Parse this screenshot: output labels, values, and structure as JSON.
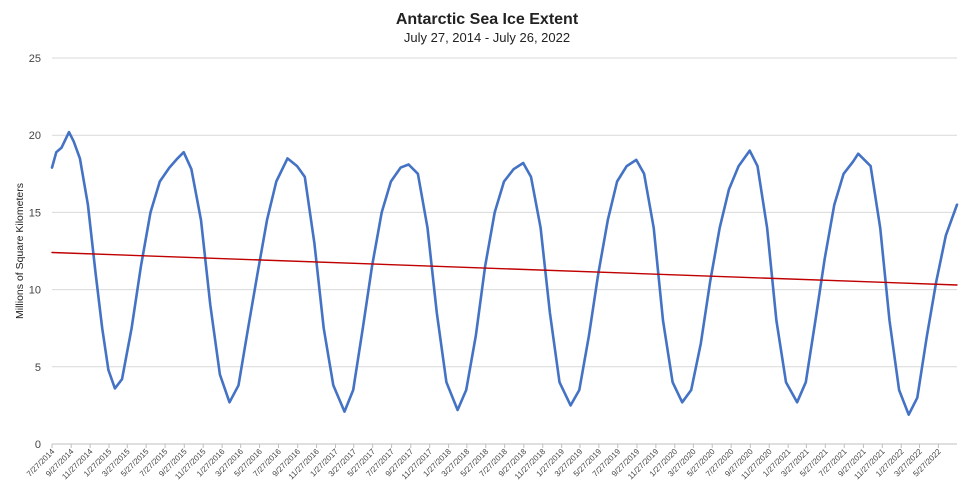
{
  "chart_data": {
    "type": "line",
    "title": "Antarctic Sea Ice Extent",
    "subtitle": "July 27, 2014 - July 26, 2022",
    "xlabel": "",
    "ylabel": "Millions of Square Kilometers",
    "ylim": [
      0,
      25
    ],
    "yticks": [
      0,
      5,
      10,
      15,
      20,
      25
    ],
    "grid": "horizontal",
    "x_range": [
      "2014-07-27",
      "2022-07-26"
    ],
    "x_tick_labels": [
      "7/27/2014",
      "9/27/2014",
      "11/27/2014",
      "1/27/2015",
      "3/27/2015",
      "5/27/2015",
      "7/27/2015",
      "9/27/2015",
      "11/27/2015",
      "1/27/2016",
      "3/27/2016",
      "5/27/2016",
      "7/27/2016",
      "9/27/2016",
      "11/27/2016",
      "1/27/2017",
      "3/27/2017",
      "5/27/2017",
      "7/27/2017",
      "9/27/2017",
      "11/27/2017",
      "1/27/2018",
      "3/27/2018",
      "5/27/2018",
      "7/27/2018",
      "9/27/2018",
      "11/27/2018",
      "1/27/2019",
      "3/27/2019",
      "5/27/2019",
      "7/27/2019",
      "9/27/2019",
      "11/27/2019",
      "1/27/2020",
      "3/27/2020",
      "5/27/2020",
      "7/27/2020",
      "9/27/2020",
      "11/27/2020",
      "1/27/2021",
      "3/27/2021",
      "5/27/2021",
      "7/27/2021",
      "9/27/2021",
      "11/27/2021",
      "1/27/2022",
      "3/27/2022",
      "5/27/2022"
    ],
    "series": [
      {
        "role": "daily extent",
        "color": "#4472c4",
        "points": [
          {
            "x": "2014-07-27",
            "y": 17.9
          },
          {
            "x": "2014-08-10",
            "y": 18.9
          },
          {
            "x": "2014-08-27",
            "y": 19.2
          },
          {
            "x": "2014-09-20",
            "y": 20.2
          },
          {
            "x": "2014-10-05",
            "y": 19.6
          },
          {
            "x": "2014-10-25",
            "y": 18.5
          },
          {
            "x": "2014-11-20",
            "y": 15.5
          },
          {
            "x": "2014-12-15",
            "y": 11.0
          },
          {
            "x": "2015-01-05",
            "y": 7.5
          },
          {
            "x": "2015-01-25",
            "y": 4.8
          },
          {
            "x": "2015-02-15",
            "y": 3.6
          },
          {
            "x": "2015-03-10",
            "y": 4.2
          },
          {
            "x": "2015-04-10",
            "y": 7.5
          },
          {
            "x": "2015-05-10",
            "y": 11.5
          },
          {
            "x": "2015-06-10",
            "y": 15.0
          },
          {
            "x": "2015-07-10",
            "y": 17.0
          },
          {
            "x": "2015-08-10",
            "y": 17.9
          },
          {
            "x": "2015-09-05",
            "y": 18.5
          },
          {
            "x": "2015-09-25",
            "y": 18.9
          },
          {
            "x": "2015-10-20",
            "y": 17.8
          },
          {
            "x": "2015-11-20",
            "y": 14.5
          },
          {
            "x": "2015-12-20",
            "y": 9.0
          },
          {
            "x": "2016-01-20",
            "y": 4.5
          },
          {
            "x": "2016-02-20",
            "y": 2.7
          },
          {
            "x": "2016-03-20",
            "y": 3.8
          },
          {
            "x": "2016-04-20",
            "y": 7.5
          },
          {
            "x": "2016-05-20",
            "y": 11.0
          },
          {
            "x": "2016-06-20",
            "y": 14.5
          },
          {
            "x": "2016-07-20",
            "y": 17.0
          },
          {
            "x": "2016-08-25",
            "y": 18.5
          },
          {
            "x": "2016-09-25",
            "y": 18.0
          },
          {
            "x": "2016-10-20",
            "y": 17.3
          },
          {
            "x": "2016-11-20",
            "y": 13.0
          },
          {
            "x": "2016-12-20",
            "y": 7.5
          },
          {
            "x": "2017-01-20",
            "y": 3.8
          },
          {
            "x": "2017-02-25",
            "y": 2.1
          },
          {
            "x": "2017-03-25",
            "y": 3.5
          },
          {
            "x": "2017-04-25",
            "y": 7.5
          },
          {
            "x": "2017-05-25",
            "y": 11.5
          },
          {
            "x": "2017-06-25",
            "y": 15.0
          },
          {
            "x": "2017-07-25",
            "y": 17.0
          },
          {
            "x": "2017-08-25",
            "y": 17.9
          },
          {
            "x": "2017-09-20",
            "y": 18.1
          },
          {
            "x": "2017-10-20",
            "y": 17.5
          },
          {
            "x": "2017-11-20",
            "y": 14.0
          },
          {
            "x": "2017-12-20",
            "y": 8.5
          },
          {
            "x": "2018-01-20",
            "y": 4.0
          },
          {
            "x": "2018-02-25",
            "y": 2.2
          },
          {
            "x": "2018-03-25",
            "y": 3.5
          },
          {
            "x": "2018-04-25",
            "y": 7.0
          },
          {
            "x": "2018-05-25",
            "y": 11.5
          },
          {
            "x": "2018-06-25",
            "y": 15.0
          },
          {
            "x": "2018-07-25",
            "y": 17.0
          },
          {
            "x": "2018-08-25",
            "y": 17.8
          },
          {
            "x": "2018-09-25",
            "y": 18.2
          },
          {
            "x": "2018-10-20",
            "y": 17.3
          },
          {
            "x": "2018-11-20",
            "y": 14.0
          },
          {
            "x": "2018-12-20",
            "y": 8.5
          },
          {
            "x": "2019-01-20",
            "y": 4.0
          },
          {
            "x": "2019-02-25",
            "y": 2.5
          },
          {
            "x": "2019-03-25",
            "y": 3.5
          },
          {
            "x": "2019-04-25",
            "y": 7.0
          },
          {
            "x": "2019-05-25",
            "y": 11.0
          },
          {
            "x": "2019-06-25",
            "y": 14.5
          },
          {
            "x": "2019-07-25",
            "y": 17.0
          },
          {
            "x": "2019-08-25",
            "y": 18.0
          },
          {
            "x": "2019-09-25",
            "y": 18.4
          },
          {
            "x": "2019-10-20",
            "y": 17.5
          },
          {
            "x": "2019-11-20",
            "y": 14.0
          },
          {
            "x": "2019-12-20",
            "y": 8.0
          },
          {
            "x": "2020-01-20",
            "y": 4.0
          },
          {
            "x": "2020-02-20",
            "y": 2.7
          },
          {
            "x": "2020-03-20",
            "y": 3.5
          },
          {
            "x": "2020-04-20",
            "y": 6.5
          },
          {
            "x": "2020-05-20",
            "y": 10.5
          },
          {
            "x": "2020-06-20",
            "y": 14.0
          },
          {
            "x": "2020-07-20",
            "y": 16.5
          },
          {
            "x": "2020-08-20",
            "y": 18.0
          },
          {
            "x": "2020-09-25",
            "y": 19.0
          },
          {
            "x": "2020-10-20",
            "y": 18.0
          },
          {
            "x": "2020-11-20",
            "y": 14.0
          },
          {
            "x": "2020-12-20",
            "y": 8.0
          },
          {
            "x": "2021-01-20",
            "y": 4.0
          },
          {
            "x": "2021-02-25",
            "y": 2.7
          },
          {
            "x": "2021-03-25",
            "y": 4.0
          },
          {
            "x": "2021-04-25",
            "y": 8.0
          },
          {
            "x": "2021-05-25",
            "y": 12.0
          },
          {
            "x": "2021-06-25",
            "y": 15.5
          },
          {
            "x": "2021-07-25",
            "y": 17.5
          },
          {
            "x": "2021-08-25",
            "y": 18.3
          },
          {
            "x": "2021-09-10",
            "y": 18.8
          },
          {
            "x": "2021-10-20",
            "y": 18.0
          },
          {
            "x": "2021-11-20",
            "y": 14.0
          },
          {
            "x": "2021-12-20",
            "y": 8.0
          },
          {
            "x": "2022-01-20",
            "y": 3.5
          },
          {
            "x": "2022-02-20",
            "y": 1.9
          },
          {
            "x": "2022-03-20",
            "y": 3.0
          },
          {
            "x": "2022-04-20",
            "y": 7.0
          },
          {
            "x": "2022-05-20",
            "y": 10.5
          },
          {
            "x": "2022-06-20",
            "y": 13.5
          },
          {
            "x": "2022-07-26",
            "y": 15.5
          }
        ]
      },
      {
        "role": "linear trend",
        "color": "#c00000",
        "points": [
          {
            "x": "2014-07-27",
            "y": 12.4
          },
          {
            "x": "2022-07-26",
            "y": 10.3
          }
        ]
      }
    ]
  }
}
